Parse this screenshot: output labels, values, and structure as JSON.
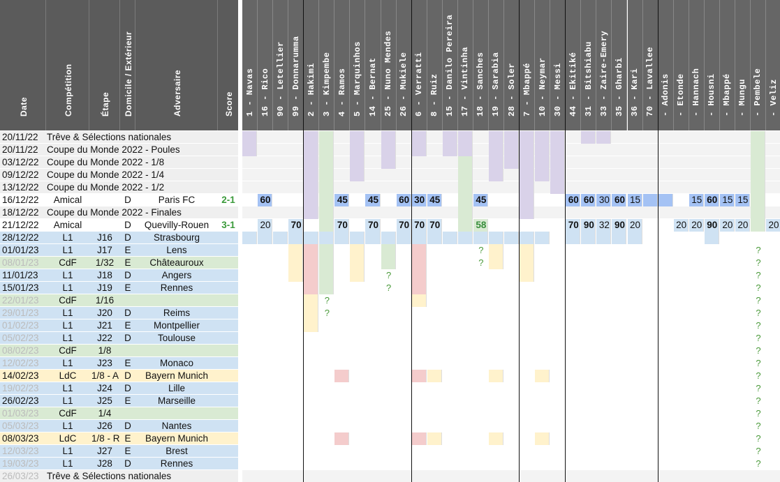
{
  "left_headers": [
    "Date",
    "Compétition",
    "Étape",
    "Domicile / Extérieur",
    "Adversaire",
    "Score"
  ],
  "players": [
    "1 - Navas",
    "16 - Rico",
    "90 - Letellier",
    "99 - Donnarumma",
    "2 - Hakimi",
    "3 - Kimpembe",
    "4 - Ramos",
    "5 - Marquinhos",
    "14 - Bernat",
    "25 - Nuno Mendes",
    "26 - Mukiele",
    "6 - Verratti",
    "8 - Ruiz",
    "15 - Danilo Pereira",
    "17 - Vintinha",
    "18 - Sanches",
    "19 - Sarabia",
    "28 - Soler",
    "7 - Mbappé",
    "10 - Neymar",
    "30 - Messi",
    "44 - Ekitiké",
    "31 - Bitshiabu",
    "33 - Zaire-Emery",
    "35 - Gharbi",
    "36 - Kari",
    "70 - Lavallee",
    "- Adonis",
    "- Etonde",
    "- Hannach",
    "- Housni",
    "- Mbappé",
    "- Mungu",
    "- Pembele",
    "- Veliz"
  ],
  "rows": [
    {
      "date": "20/11/22",
      "comp": "Trêve & Sélections nationales",
      "stage": "",
      "ha": "",
      "opp": "",
      "score": "",
      "bg": "#efefef",
      "dim": false,
      "span": true
    },
    {
      "date": "20/11/22",
      "comp": "Coupe du Monde 2022 - Poules",
      "stage": "",
      "ha": "",
      "opp": "",
      "score": "",
      "bg": "#efefef",
      "dim": false,
      "span": true
    },
    {
      "date": "03/12/22",
      "comp": "Coupe du Monde 2022 - 1/8",
      "stage": "",
      "ha": "",
      "opp": "",
      "score": "",
      "bg": "#efefef",
      "dim": false,
      "span": true
    },
    {
      "date": "09/12/22",
      "comp": "Coupe du Monde 2022 - 1/4",
      "stage": "",
      "ha": "",
      "opp": "",
      "score": "",
      "bg": "#efefef",
      "dim": false,
      "span": true
    },
    {
      "date": "13/12/22",
      "comp": "Coupe du Monde 2022 - 1/2",
      "stage": "",
      "ha": "",
      "opp": "",
      "score": "",
      "bg": "#efefef",
      "dim": false,
      "span": true
    },
    {
      "date": "16/12/22",
      "comp": "Amical",
      "stage": "",
      "ha": "D",
      "opp": "Paris FC",
      "score": "2-1",
      "bg": "#ffffff",
      "dim": false,
      "span": false
    },
    {
      "date": "18/12/22",
      "comp": "Coupe du Monde 2022 - Finales",
      "stage": "",
      "ha": "",
      "opp": "",
      "score": "",
      "bg": "#efefef",
      "dim": false,
      "span": true
    },
    {
      "date": "21/12/22",
      "comp": "Amical",
      "stage": "",
      "ha": "D",
      "opp": "Quevilly-Rouen",
      "score": "3-1",
      "bg": "#ffffff",
      "dim": false,
      "span": false
    },
    {
      "date": "28/12/22",
      "comp": "L1",
      "stage": "J16",
      "ha": "D",
      "opp": "Strasbourg",
      "score": "",
      "bg": "#cfe2f3",
      "dim": false,
      "span": false
    },
    {
      "date": "01/01/23",
      "comp": "L1",
      "stage": "J17",
      "ha": "E",
      "opp": "Lens",
      "score": "",
      "bg": "#cfe2f3",
      "dim": false,
      "span": false
    },
    {
      "date": "08/01/23",
      "comp": "CdF",
      "stage": "1/32",
      "ha": "E",
      "opp": "Châteauroux",
      "score": "",
      "bg": "#d9ead3",
      "dim": true,
      "span": false
    },
    {
      "date": "11/01/23",
      "comp": "L1",
      "stage": "J18",
      "ha": "D",
      "opp": "Angers",
      "score": "",
      "bg": "#cfe2f3",
      "dim": false,
      "span": false
    },
    {
      "date": "15/01/23",
      "comp": "L1",
      "stage": "J19",
      "ha": "E",
      "opp": "Rennes",
      "score": "",
      "bg": "#cfe2f3",
      "dim": false,
      "span": false
    },
    {
      "date": "22/01/23",
      "comp": "CdF",
      "stage": "1/16",
      "ha": "",
      "opp": "",
      "score": "",
      "bg": "#d9ead3",
      "dim": true,
      "span": false
    },
    {
      "date": "29/01/23",
      "comp": "L1",
      "stage": "J20",
      "ha": "D",
      "opp": "Reims",
      "score": "",
      "bg": "#cfe2f3",
      "dim": true,
      "span": false
    },
    {
      "date": "01/02/23",
      "comp": "L1",
      "stage": "J21",
      "ha": "E",
      "opp": "Montpellier",
      "score": "",
      "bg": "#cfe2f3",
      "dim": true,
      "span": false
    },
    {
      "date": "05/02/23",
      "comp": "L1",
      "stage": "J22",
      "ha": "D",
      "opp": "Toulouse",
      "score": "",
      "bg": "#cfe2f3",
      "dim": true,
      "span": false
    },
    {
      "date": "08/02/23",
      "comp": "CdF",
      "stage": "1/8",
      "ha": "",
      "opp": "",
      "score": "",
      "bg": "#d9ead3",
      "dim": true,
      "span": false
    },
    {
      "date": "12/02/23",
      "comp": "L1",
      "stage": "J23",
      "ha": "E",
      "opp": "Monaco",
      "score": "",
      "bg": "#cfe2f3",
      "dim": true,
      "span": false
    },
    {
      "date": "14/02/23",
      "comp": "LdC",
      "stage": "1/8 - A",
      "ha": "D",
      "opp": "Bayern Munich",
      "score": "",
      "bg": "#fff2cc",
      "dim": false,
      "span": false
    },
    {
      "date": "19/02/23",
      "comp": "L1",
      "stage": "J24",
      "ha": "D",
      "opp": "Lille",
      "score": "",
      "bg": "#cfe2f3",
      "dim": true,
      "span": false
    },
    {
      "date": "26/02/23",
      "comp": "L1",
      "stage": "J25",
      "ha": "E",
      "opp": "Marseille",
      "score": "",
      "bg": "#cfe2f3",
      "dim": false,
      "span": false
    },
    {
      "date": "01/03/23",
      "comp": "CdF",
      "stage": "1/4",
      "ha": "",
      "opp": "",
      "score": "",
      "bg": "#d9ead3",
      "dim": true,
      "span": false
    },
    {
      "date": "05/03/23",
      "comp": "L1",
      "stage": "J26",
      "ha": "D",
      "opp": "Nantes",
      "score": "",
      "bg": "#cfe2f3",
      "dim": true,
      "span": false
    },
    {
      "date": "08/03/23",
      "comp": "LdC",
      "stage": "1/8 - R",
      "ha": "E",
      "opp": "Bayern Munich",
      "score": "",
      "bg": "#fff2cc",
      "dim": false,
      "span": false
    },
    {
      "date": "12/03/23",
      "comp": "L1",
      "stage": "J27",
      "ha": "E",
      "opp": "Brest",
      "score": "",
      "bg": "#cfe2f3",
      "dim": true,
      "span": false
    },
    {
      "date": "19/03/23",
      "comp": "L1",
      "stage": "J28",
      "ha": "D",
      "opp": "Rennes",
      "score": "",
      "bg": "#cfe2f3",
      "dim": true,
      "span": false
    },
    {
      "date": "26/03/23",
      "comp": "Trêve & Sélections nationales",
      "stage": "",
      "ha": "",
      "opp": "",
      "score": "",
      "bg": "#efefef",
      "dim": true,
      "span": true
    }
  ],
  "colors": {
    "purple": "#d9d2e9",
    "green": "#d9ead3",
    "blue": "#cfe2f3",
    "bluedark": "#a4c2f4",
    "yellow": "#fff2cc",
    "red": "#f4cccc",
    "grey": "#efefef",
    "orange": "#fce5cd"
  },
  "fills": [
    {
      "r": 0,
      "c": [
        0,
        4,
        7,
        9,
        11,
        13,
        14,
        16,
        17,
        18,
        19,
        20,
        22,
        23
      ],
      "k": "purple"
    },
    {
      "r": 0,
      "c": [
        5,
        33
      ],
      "k": "green"
    },
    {
      "r": 1,
      "c": [
        0,
        4,
        7,
        9,
        11,
        13,
        14,
        16,
        17,
        18,
        19,
        20
      ],
      "k": "purple"
    },
    {
      "r": 1,
      "c": [
        5,
        33
      ],
      "k": "green"
    },
    {
      "r": 2,
      "c": [
        4,
        7,
        9,
        16,
        17,
        18,
        19,
        20
      ],
      "k": "purple"
    },
    {
      "r": 2,
      "c": [
        5,
        14,
        33
      ],
      "k": "green"
    },
    {
      "r": 3,
      "c": [
        4,
        7,
        16,
        18,
        19,
        20
      ],
      "k": "purple"
    },
    {
      "r": 3,
      "c": [
        5,
        14,
        33
      ],
      "k": "green"
    },
    {
      "r": 4,
      "c": [
        4,
        18,
        20
      ],
      "k": "purple"
    },
    {
      "r": 4,
      "c": [
        5,
        14,
        33
      ],
      "k": "green"
    },
    {
      "r": 5,
      "c": [
        1,
        6,
        8,
        10,
        11,
        12,
        15,
        21,
        22,
        23,
        24,
        25,
        26,
        27,
        29,
        30,
        31,
        32
      ],
      "k": "bluedark"
    },
    {
      "r": 5,
      "c": [
        4,
        18
      ],
      "k": "purple"
    },
    {
      "r": 5,
      "c": [
        5,
        14,
        33
      ],
      "k": "green"
    },
    {
      "r": 6,
      "c": [
        4,
        18
      ],
      "k": "purple"
    },
    {
      "r": 6,
      "c": [
        5,
        14,
        33
      ],
      "k": "green"
    },
    {
      "r": 7,
      "c": [
        1,
        3,
        6,
        8,
        10,
        11,
        12,
        21,
        22,
        23,
        24,
        25,
        28,
        29,
        30,
        31,
        32,
        34
      ],
      "k": "blue"
    },
    {
      "r": 7,
      "c": [
        5,
        14,
        15,
        33
      ],
      "k": "green"
    },
    {
      "r": 8,
      "c": [
        0,
        1,
        2,
        3,
        4,
        5,
        6,
        7,
        8,
        9,
        10,
        11,
        12,
        13,
        14,
        15,
        16,
        17,
        18,
        19,
        21,
        22,
        23,
        24,
        25,
        30
      ],
      "k": "blue"
    },
    {
      "r": 9,
      "c": [
        3,
        7,
        16,
        18
      ],
      "k": "yellow"
    },
    {
      "r": 9,
      "c": [
        4,
        11
      ],
      "k": "red"
    },
    {
      "r": 9,
      "c": [
        5,
        9
      ],
      "k": "green"
    },
    {
      "r": 10,
      "c": [
        3,
        7,
        16,
        18
      ],
      "k": "yellow"
    },
    {
      "r": 10,
      "c": [
        4,
        11
      ],
      "k": "red"
    },
    {
      "r": 10,
      "c": [
        5,
        9
      ],
      "k": "green"
    },
    {
      "r": 11,
      "c": [
        4,
        11
      ],
      "k": "red"
    },
    {
      "r": 11,
      "c": [
        3,
        7,
        18
      ],
      "k": "yellow"
    },
    {
      "r": 11,
      "c": [
        5
      ],
      "k": "green"
    },
    {
      "r": 12,
      "c": [
        4,
        11
      ],
      "k": "red"
    },
    {
      "r": 12,
      "c": [
        5
      ],
      "k": "green"
    },
    {
      "r": 13,
      "c": [
        4,
        11
      ],
      "k": "yellow"
    },
    {
      "r": 14,
      "c": [
        4
      ],
      "k": "yellow"
    },
    {
      "r": 15,
      "c": [
        4
      ],
      "k": "yellow"
    },
    {
      "r": 19,
      "c": [
        6,
        11
      ],
      "k": "red"
    },
    {
      "r": 19,
      "c": [
        12,
        16,
        19
      ],
      "k": "yellow"
    },
    {
      "r": 24,
      "c": [
        6,
        11
      ],
      "k": "red"
    },
    {
      "r": 24,
      "c": [
        12,
        16,
        19
      ],
      "k": "yellow"
    }
  ],
  "nums": [
    {
      "r": 5,
      "c": 1,
      "v": "60",
      "b": true
    },
    {
      "r": 5,
      "c": 6,
      "v": "45",
      "b": true
    },
    {
      "r": 5,
      "c": 8,
      "v": "45",
      "b": true
    },
    {
      "r": 5,
      "c": 10,
      "v": "60",
      "b": true
    },
    {
      "r": 5,
      "c": 11,
      "v": "30",
      "b": true
    },
    {
      "r": 5,
      "c": 12,
      "v": "45",
      "b": true
    },
    {
      "r": 5,
      "c": 15,
      "v": "45",
      "b": true
    },
    {
      "r": 5,
      "c": 21,
      "v": "60",
      "b": true
    },
    {
      "r": 5,
      "c": 22,
      "v": "60",
      "b": true
    },
    {
      "r": 5,
      "c": 23,
      "v": "30",
      "b": false
    },
    {
      "r": 5,
      "c": 24,
      "v": "60",
      "b": true
    },
    {
      "r": 5,
      "c": 25,
      "v": "15",
      "b": false
    },
    {
      "r": 5,
      "c": 29,
      "v": "15",
      "b": false
    },
    {
      "r": 5,
      "c": 30,
      "v": "60",
      "b": true
    },
    {
      "r": 5,
      "c": 31,
      "v": "15",
      "b": false
    },
    {
      "r": 5,
      "c": 32,
      "v": "15",
      "b": false
    },
    {
      "r": 7,
      "c": 1,
      "v": "20",
      "b": false
    },
    {
      "r": 7,
      "c": 3,
      "v": "70",
      "b": true
    },
    {
      "r": 7,
      "c": 6,
      "v": "70",
      "b": true
    },
    {
      "r": 7,
      "c": 8,
      "v": "70",
      "b": true
    },
    {
      "r": 7,
      "c": 10,
      "v": "70",
      "b": true
    },
    {
      "r": 7,
      "c": 11,
      "v": "70",
      "b": true
    },
    {
      "r": 7,
      "c": 12,
      "v": "70",
      "b": true
    },
    {
      "r": 7,
      "c": 15,
      "v": "58",
      "b": true,
      "g": true
    },
    {
      "r": 7,
      "c": 21,
      "v": "70",
      "b": true
    },
    {
      "r": 7,
      "c": 22,
      "v": "90",
      "b": true
    },
    {
      "r": 7,
      "c": 23,
      "v": "32",
      "b": false
    },
    {
      "r": 7,
      "c": 24,
      "v": "90",
      "b": true
    },
    {
      "r": 7,
      "c": 25,
      "v": "20",
      "b": false
    },
    {
      "r": 7,
      "c": 28,
      "v": "20",
      "b": false
    },
    {
      "r": 7,
      "c": 29,
      "v": "20",
      "b": false
    },
    {
      "r": 7,
      "c": 30,
      "v": "90",
      "b": true
    },
    {
      "r": 7,
      "c": 31,
      "v": "20",
      "b": false
    },
    {
      "r": 7,
      "c": 32,
      "v": "20",
      "b": false
    },
    {
      "r": 7,
      "c": 34,
      "v": "20",
      "b": false
    }
  ],
  "qmarks": [
    {
      "r": 9,
      "c": 15
    },
    {
      "r": 10,
      "c": 15
    },
    {
      "r": 11,
      "c": 9
    },
    {
      "r": 12,
      "c": 9
    },
    {
      "r": 13,
      "c": 5
    },
    {
      "r": 14,
      "c": 5
    },
    {
      "r": 9,
      "c": 33
    },
    {
      "r": 10,
      "c": 33
    },
    {
      "r": 11,
      "c": 33
    },
    {
      "r": 12,
      "c": 33
    },
    {
      "r": 13,
      "c": 33
    },
    {
      "r": 14,
      "c": 33
    },
    {
      "r": 15,
      "c": 33
    },
    {
      "r": 16,
      "c": 33
    },
    {
      "r": 17,
      "c": 33
    },
    {
      "r": 18,
      "c": 33
    },
    {
      "r": 19,
      "c": 33
    },
    {
      "r": 20,
      "c": 33
    },
    {
      "r": 21,
      "c": 33
    },
    {
      "r": 22,
      "c": 33
    },
    {
      "r": 23,
      "c": 33
    },
    {
      "r": 24,
      "c": 33
    },
    {
      "r": 25,
      "c": 33
    },
    {
      "r": 26,
      "c": 33
    }
  ],
  "qmark_text": "?"
}
